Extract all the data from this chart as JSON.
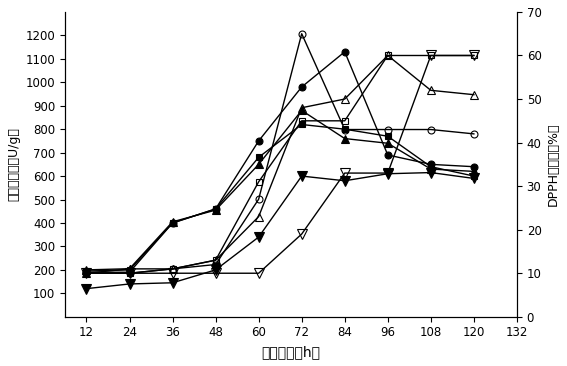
{
  "x": [
    12,
    24,
    36,
    48,
    60,
    72,
    84,
    96,
    108,
    120
  ],
  "series_left": [
    {
      "y": [
        190,
        190,
        400,
        460,
        750,
        980,
        1130,
        690,
        650,
        640
      ],
      "marker": "o",
      "filled": true,
      "ms": 5
    },
    {
      "y": [
        195,
        200,
        400,
        460,
        680,
        820,
        800,
        770,
        640,
        600
      ],
      "marker": "s",
      "filled": true,
      "ms": 5
    },
    {
      "y": [
        200,
        205,
        405,
        455,
        650,
        880,
        760,
        740,
        630,
        620
      ],
      "marker": "^",
      "filled": true,
      "ms": 6
    },
    {
      "y": [
        120,
        140,
        145,
        200,
        340,
        600,
        580,
        610,
        615,
        590
      ],
      "marker": "v",
      "filled": true,
      "ms": 7
    }
  ],
  "series_right": [
    {
      "y": [
        10,
        10,
        11,
        12,
        27,
        65,
        43,
        43,
        43,
        42
      ],
      "marker": "o",
      "filled": false,
      "ms": 5
    },
    {
      "y": [
        10,
        10,
        11,
        13,
        31,
        45,
        45,
        60,
        60,
        60
      ],
      "marker": "s",
      "filled": false,
      "ms": 5
    },
    {
      "y": [
        10,
        11,
        11,
        13,
        23,
        48,
        50,
        60,
        52,
        51
      ],
      "marker": "^",
      "filled": false,
      "ms": 6
    },
    {
      "y": [
        10,
        10,
        10,
        10,
        10,
        19,
        33,
        33,
        60,
        60
      ],
      "marker": "v",
      "filled": false,
      "ms": 7
    }
  ],
  "xlabel": "发酵时间（h）",
  "ylabel_left": "蛋白酶活性（U/g）",
  "ylabel_right": "DPPH清除率（%）",
  "xlim": [
    6,
    132
  ],
  "xticks": [
    12,
    24,
    36,
    48,
    60,
    72,
    84,
    96,
    108,
    120,
    132
  ],
  "ylim_left": [
    0,
    1300
  ],
  "yticks_left": [
    100,
    200,
    300,
    400,
    500,
    600,
    700,
    800,
    900,
    1000,
    1100,
    1200
  ],
  "ylim_right": [
    0,
    70
  ],
  "yticks_right": [
    0,
    10,
    20,
    30,
    40,
    50,
    60,
    70
  ],
  "color": "#000000",
  "linewidth": 1.0,
  "figsize": [
    5.67,
    3.66
  ],
  "dpi": 100
}
